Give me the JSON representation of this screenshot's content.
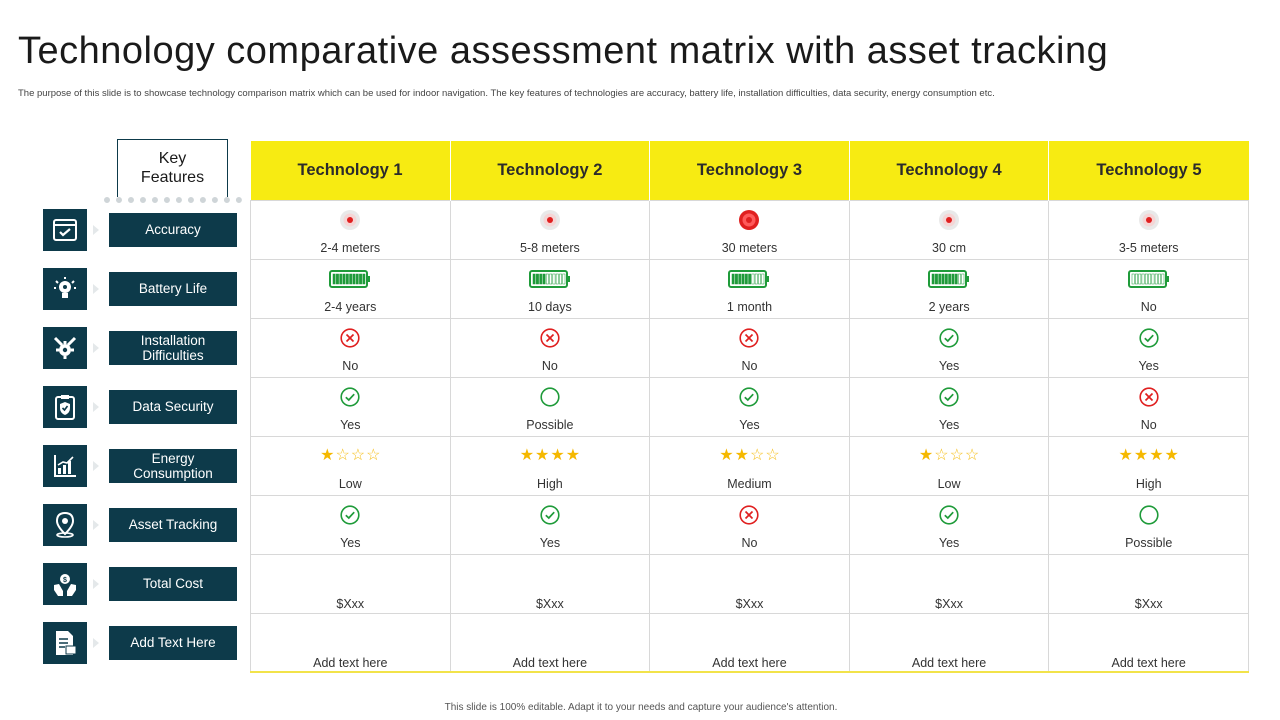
{
  "title": "Technology comparative assessment matrix with asset tracking",
  "subtitle": "The purpose of this slide is to showcase technology comparison matrix which can be used for indoor navigation. The key features of technologies are accuracy, battery life, installation difficulties, data security, energy consumption etc.",
  "footer": "This slide is 100% editable. Adapt it to your needs and capture your audience's attention.",
  "key_features_label": "Key Features",
  "columns": [
    "Technology 1",
    "Technology 2",
    "Technology 3",
    "Technology 4",
    "Technology 5"
  ],
  "rows": [
    {
      "label": "Accuracy",
      "icon": "browser-check-icon",
      "cells": [
        {
          "icon": "target-icon",
          "level": "faint",
          "text": "2-4 meters"
        },
        {
          "icon": "target-icon",
          "level": "faint",
          "text": "5-8 meters"
        },
        {
          "icon": "target-icon",
          "level": "strong",
          "text": "30 meters"
        },
        {
          "icon": "target-icon",
          "level": "faint",
          "text": "30 cm"
        },
        {
          "icon": "target-icon",
          "level": "faint",
          "text": "3-5 meters"
        }
      ]
    },
    {
      "label": "Battery Life",
      "icon": "bulb-gear-icon",
      "cells": [
        {
          "icon": "battery-icon",
          "level": 1.0,
          "text": "2-4 years"
        },
        {
          "icon": "battery-icon",
          "level": 0.4,
          "text": "10 days"
        },
        {
          "icon": "battery-icon",
          "level": 0.6,
          "text": "1 month"
        },
        {
          "icon": "battery-icon",
          "level": 0.8,
          "text": "2 years"
        },
        {
          "icon": "battery-icon",
          "level": 0.0,
          "text": "No"
        }
      ]
    },
    {
      "label": "Installation Difficulties",
      "icon": "wrench-gear-icon",
      "cells": [
        {
          "icon": "cross-circle-icon",
          "text": "No"
        },
        {
          "icon": "cross-circle-icon",
          "text": "No"
        },
        {
          "icon": "cross-circle-icon",
          "text": "No"
        },
        {
          "icon": "check-circle-icon",
          "text": "Yes"
        },
        {
          "icon": "check-circle-icon",
          "text": "Yes"
        }
      ]
    },
    {
      "label": "Data Security",
      "icon": "shield-clipboard-icon",
      "cells": [
        {
          "icon": "check-circle-icon",
          "text": "Yes"
        },
        {
          "icon": "empty-circle-icon",
          "text": "Possible"
        },
        {
          "icon": "check-circle-icon",
          "text": "Yes"
        },
        {
          "icon": "check-circle-icon",
          "text": "Yes"
        },
        {
          "icon": "cross-circle-icon",
          "text": "No"
        }
      ]
    },
    {
      "label": "Energy Consumption",
      "icon": "bar-chart-icon",
      "cells": [
        {
          "icon": "stars-icon",
          "rating": 1,
          "text": "Low"
        },
        {
          "icon": "stars-icon",
          "rating": 4,
          "text": "High"
        },
        {
          "icon": "stars-icon",
          "rating": 2,
          "text": "Medium"
        },
        {
          "icon": "stars-icon",
          "rating": 1,
          "text": "Low"
        },
        {
          "icon": "stars-icon",
          "rating": 4,
          "text": "High"
        }
      ]
    },
    {
      "label": "Asset Tracking",
      "icon": "location-pin-icon",
      "cells": [
        {
          "icon": "check-circle-icon",
          "text": "Yes"
        },
        {
          "icon": "check-circle-icon",
          "text": "Yes"
        },
        {
          "icon": "cross-circle-icon",
          "text": "No"
        },
        {
          "icon": "check-circle-icon",
          "text": "Yes"
        },
        {
          "icon": "empty-circle-icon",
          "text": "Possible"
        }
      ]
    },
    {
      "label": "Total Cost",
      "icon": "hand-money-icon",
      "cells": [
        {
          "icon": "none",
          "text": "$Xxx"
        },
        {
          "icon": "none",
          "text": "$Xxx"
        },
        {
          "icon": "none",
          "text": "$Xxx"
        },
        {
          "icon": "none",
          "text": "$Xxx"
        },
        {
          "icon": "none",
          "text": "$Xxx"
        }
      ]
    },
    {
      "label": "Add Text Here",
      "icon": "document-icon",
      "cells": [
        {
          "icon": "none",
          "text": "Add text here"
        },
        {
          "icon": "none",
          "text": "Add text here"
        },
        {
          "icon": "none",
          "text": "Add text here"
        },
        {
          "icon": "none",
          "text": "Add text here"
        },
        {
          "icon": "none",
          "text": "Add text here"
        }
      ]
    }
  ],
  "colors": {
    "header_yellow": "#f7eb12",
    "dark_teal": "#0d3a4a",
    "green": "#1f9b3a",
    "red": "#e02020",
    "star": "#f5b800"
  }
}
